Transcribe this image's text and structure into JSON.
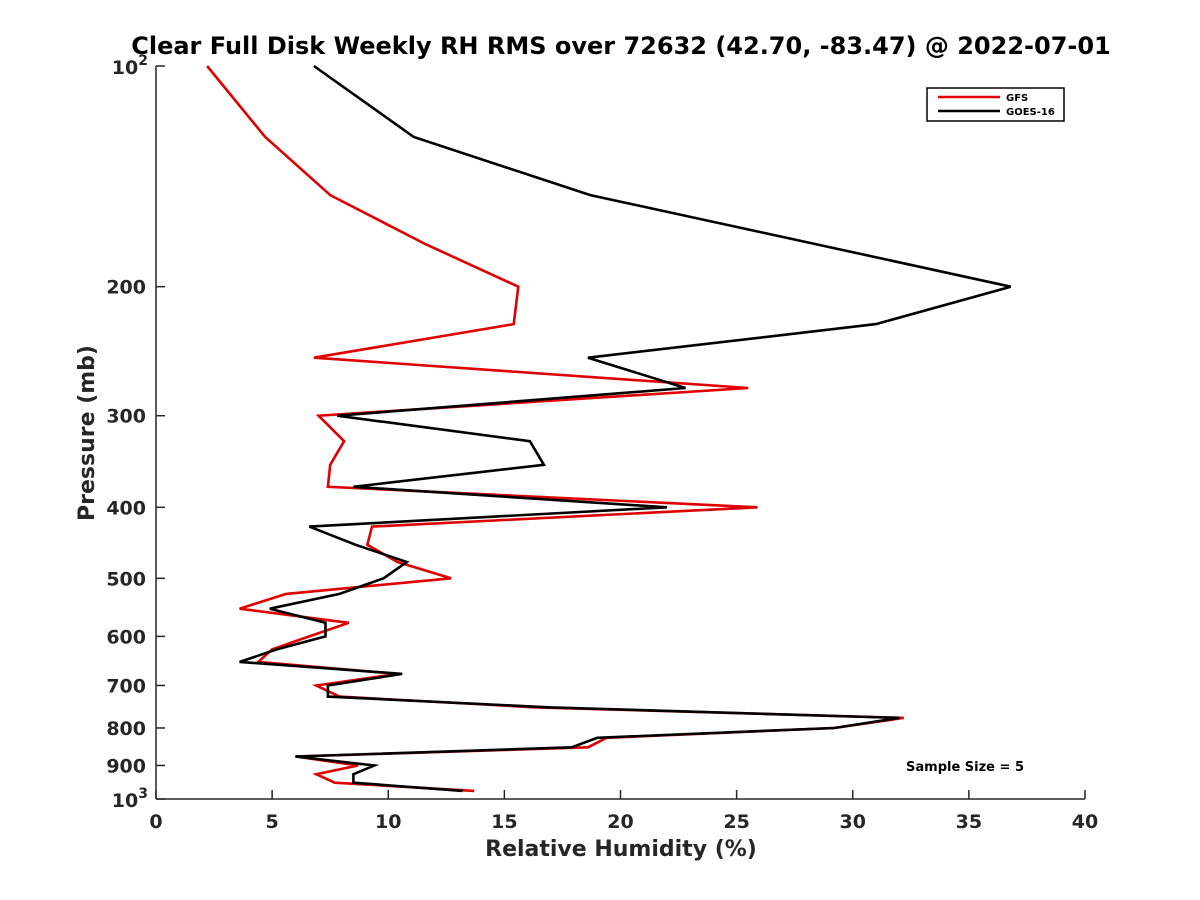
{
  "chart_data": {
    "type": "line",
    "title": "Clear Full Disk Weekly RH RMS over 72632 (42.70, -83.47) @ 2022-07-01",
    "xlabel": "Relative Humidity (%)",
    "ylabel": "Pressure (mb)",
    "xlim": [
      0,
      40
    ],
    "ylim": [
      100,
      1000
    ],
    "y_scale": "log",
    "y_reversed": true,
    "grid": false,
    "legend_position": "top-right",
    "x_ticks": [
      "0",
      "5",
      "10",
      "15",
      "20",
      "25",
      "30",
      "35",
      "40"
    ],
    "y_ticks": [
      {
        "value": 100,
        "base": "10",
        "exp": "2"
      },
      {
        "value": 200,
        "label": "200"
      },
      {
        "value": 300,
        "label": "300"
      },
      {
        "value": 400,
        "label": "400"
      },
      {
        "value": 500,
        "label": "500"
      },
      {
        "value": 600,
        "label": "600"
      },
      {
        "value": 700,
        "label": "700"
      },
      {
        "value": 800,
        "label": "800"
      },
      {
        "value": 900,
        "label": "900"
      },
      {
        "value": 1000,
        "base": "10",
        "exp": "3"
      }
    ],
    "annotation": "Sample Size = 5",
    "series": [
      {
        "name": "GFS",
        "color": "#e00000",
        "points": [
          {
            "p": 100,
            "x": 2.2
          },
          {
            "p": 125,
            "x": 4.7
          },
          {
            "p": 150,
            "x": 7.5
          },
          {
            "p": 175,
            "x": 11.6
          },
          {
            "p": 200,
            "x": 15.6
          },
          {
            "p": 225,
            "x": 15.4
          },
          {
            "p": 250,
            "x": 6.8
          },
          {
            "p": 275,
            "x": 25.5
          },
          {
            "p": 300,
            "x": 7.0
          },
          {
            "p": 325,
            "x": 8.1
          },
          {
            "p": 350,
            "x": 7.5
          },
          {
            "p": 375,
            "x": 7.4
          },
          {
            "p": 400,
            "x": 25.9
          },
          {
            "p": 425,
            "x": 9.3
          },
          {
            "p": 450,
            "x": 9.1
          },
          {
            "p": 475,
            "x": 10.4
          },
          {
            "p": 500,
            "x": 12.7
          },
          {
            "p": 525,
            "x": 5.6
          },
          {
            "p": 550,
            "x": 3.6
          },
          {
            "p": 575,
            "x": 8.3
          },
          {
            "p": 600,
            "x": 6.6
          },
          {
            "p": 625,
            "x": 5.0
          },
          {
            "p": 650,
            "x": 4.4
          },
          {
            "p": 675,
            "x": 10.4
          },
          {
            "p": 700,
            "x": 6.9
          },
          {
            "p": 725,
            "x": 7.9
          },
          {
            "p": 750,
            "x": 16.4
          },
          {
            "p": 775,
            "x": 32.2
          },
          {
            "p": 800,
            "x": 29.2
          },
          {
            "p": 825,
            "x": 19.4
          },
          {
            "p": 850,
            "x": 18.6
          },
          {
            "p": 875,
            "x": 6.0
          },
          {
            "p": 900,
            "x": 8.7
          },
          {
            "p": 925,
            "x": 6.9
          },
          {
            "p": 950,
            "x": 7.7
          },
          {
            "p": 975,
            "x": 13.7
          }
        ]
      },
      {
        "name": "GOES-16",
        "color": "#000000",
        "points": [
          {
            "p": 100,
            "x": 6.8
          },
          {
            "p": 125,
            "x": 11.1
          },
          {
            "p": 150,
            "x": 18.7
          },
          {
            "p": 175,
            "x": 28.4
          },
          {
            "p": 200,
            "x": 36.8
          },
          {
            "p": 225,
            "x": 31.0
          },
          {
            "p": 250,
            "x": 18.6
          },
          {
            "p": 275,
            "x": 22.8
          },
          {
            "p": 300,
            "x": 7.8
          },
          {
            "p": 325,
            "x": 16.1
          },
          {
            "p": 350,
            "x": 16.7
          },
          {
            "p": 375,
            "x": 8.5
          },
          {
            "p": 400,
            "x": 22.0
          },
          {
            "p": 425,
            "x": 6.6
          },
          {
            "p": 450,
            "x": 8.6
          },
          {
            "p": 475,
            "x": 10.8
          },
          {
            "p": 500,
            "x": 9.8
          },
          {
            "p": 525,
            "x": 7.9
          },
          {
            "p": 550,
            "x": 4.9
          },
          {
            "p": 575,
            "x": 7.3
          },
          {
            "p": 600,
            "x": 7.3
          },
          {
            "p": 625,
            "x": 5.2
          },
          {
            "p": 650,
            "x": 3.6
          },
          {
            "p": 675,
            "x": 10.6
          },
          {
            "p": 700,
            "x": 7.4
          },
          {
            "p": 725,
            "x": 7.4
          },
          {
            "p": 750,
            "x": 17.0
          },
          {
            "p": 775,
            "x": 32.0
          },
          {
            "p": 800,
            "x": 29.2
          },
          {
            "p": 825,
            "x": 19.0
          },
          {
            "p": 850,
            "x": 17.9
          },
          {
            "p": 875,
            "x": 6.0
          },
          {
            "p": 900,
            "x": 9.4
          },
          {
            "p": 925,
            "x": 8.5
          },
          {
            "p": 950,
            "x": 8.5
          },
          {
            "p": 975,
            "x": 13.2
          }
        ]
      }
    ]
  }
}
